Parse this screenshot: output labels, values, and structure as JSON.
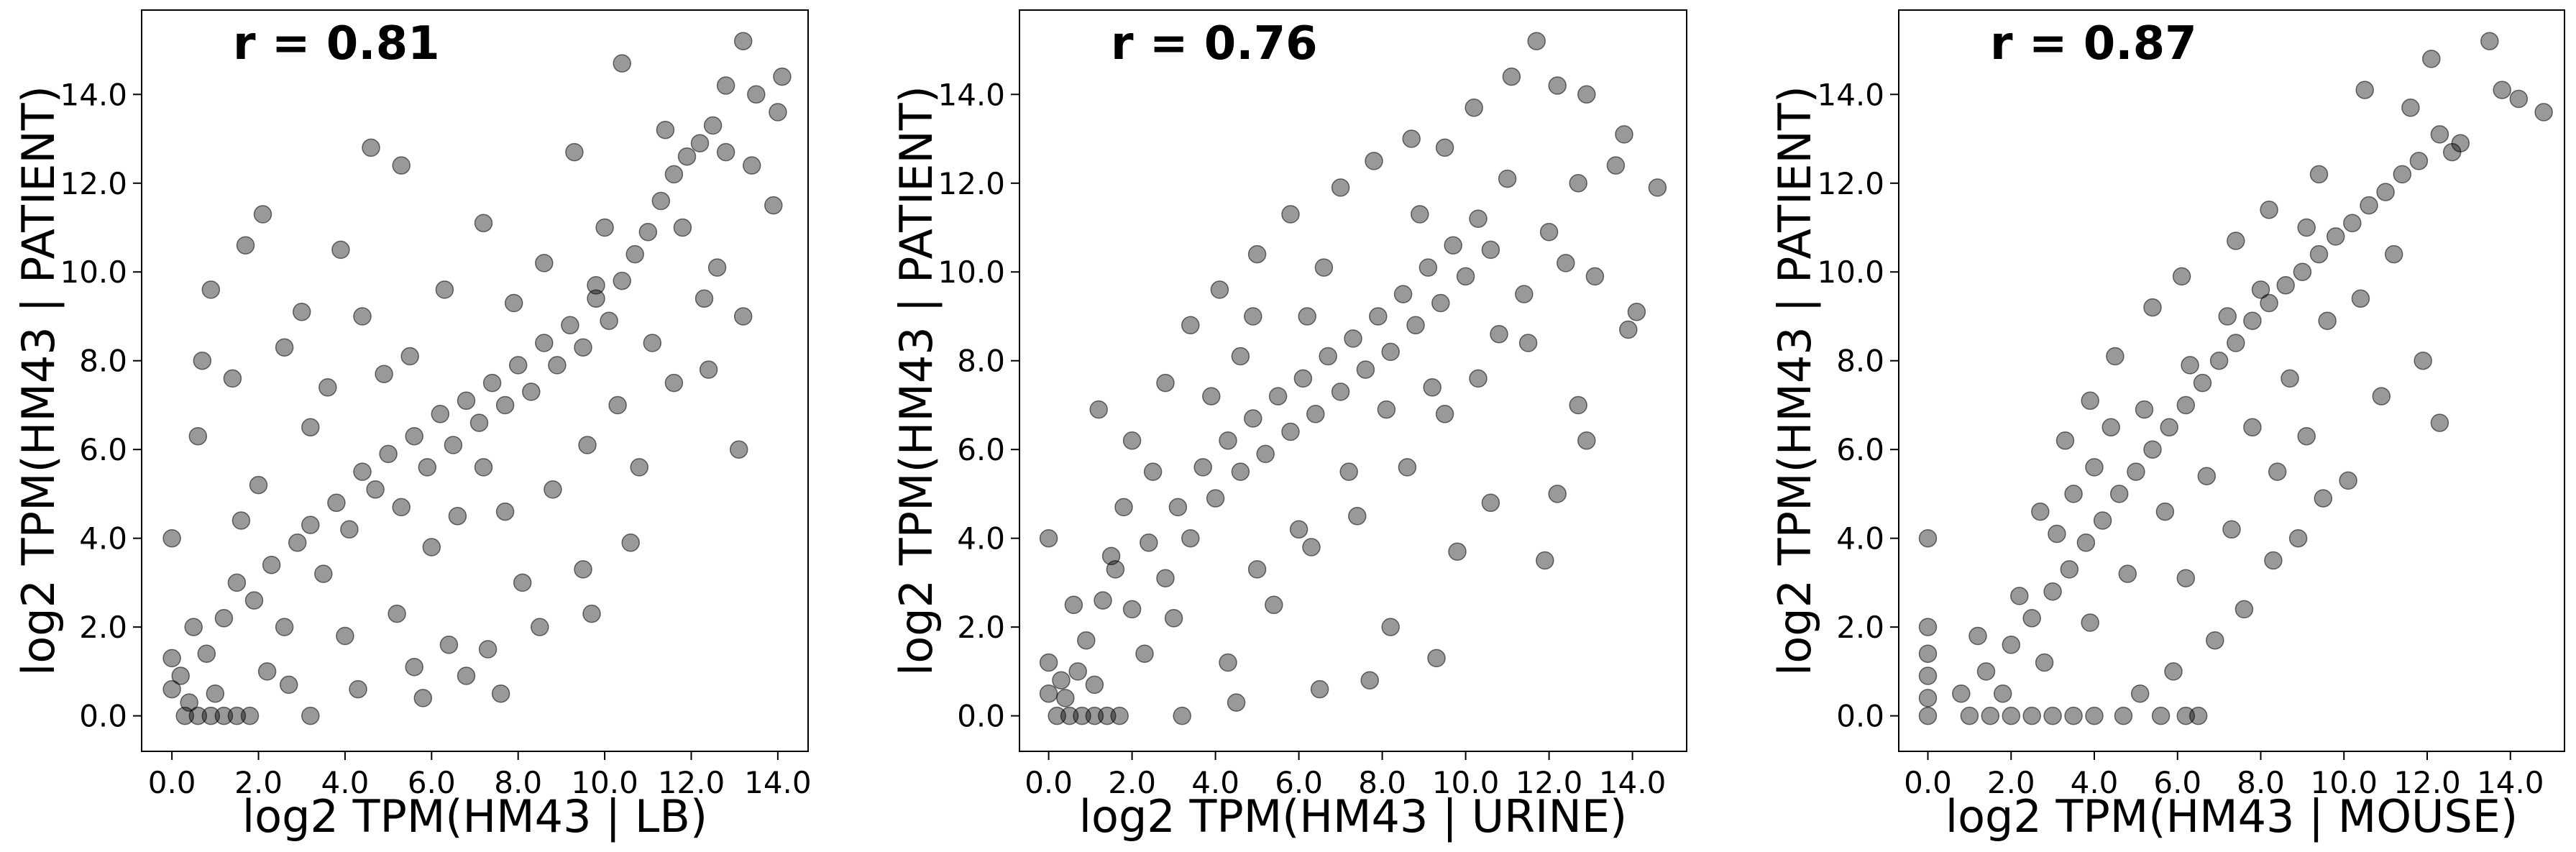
{
  "chart_data": [
    {
      "type": "scatter",
      "annotation": "r = 0.81",
      "xlabel": "log2 TPM(HM43 | LB)",
      "ylabel": "log2 TPM(HM43 | PATIENT)",
      "xlim": [
        -0.7,
        14.7
      ],
      "ylim": [
        -0.8,
        15.9
      ],
      "xticks": [
        "0.0",
        "2.0",
        "4.0",
        "6.0",
        "8.0",
        "10.0",
        "12.0",
        "14.0"
      ],
      "yticks": [
        "0.0",
        "2.0",
        "4.0",
        "6.0",
        "8.0",
        "10.0",
        "12.0",
        "14.0"
      ],
      "marker_color": "#000000",
      "marker_alpha": 0.4,
      "points": [
        [
          0.3,
          0.0
        ],
        [
          0.6,
          0.0
        ],
        [
          0.9,
          0.0
        ],
        [
          1.2,
          0.0
        ],
        [
          1.5,
          0.0
        ],
        [
          1.8,
          0.0
        ],
        [
          0.0,
          0.6
        ],
        [
          0.0,
          1.3
        ],
        [
          0.0,
          4.0
        ],
        [
          0.2,
          0.9
        ],
        [
          0.8,
          1.4
        ],
        [
          1.2,
          2.2
        ],
        [
          1.5,
          3.0
        ],
        [
          1.9,
          2.6
        ],
        [
          2.3,
          3.4
        ],
        [
          2.6,
          2.0
        ],
        [
          2.9,
          3.9
        ],
        [
          3.2,
          4.3
        ],
        [
          3.5,
          3.2
        ],
        [
          3.8,
          4.8
        ],
        [
          4.1,
          4.2
        ],
        [
          4.4,
          5.5
        ],
        [
          4.7,
          5.1
        ],
        [
          5.0,
          5.9
        ],
        [
          5.3,
          4.7
        ],
        [
          5.6,
          6.3
        ],
        [
          5.9,
          5.6
        ],
        [
          6.2,
          6.8
        ],
        [
          6.5,
          6.1
        ],
        [
          6.8,
          7.1
        ],
        [
          7.1,
          6.6
        ],
        [
          7.4,
          7.5
        ],
        [
          7.7,
          7.0
        ],
        [
          8.0,
          7.9
        ],
        [
          8.3,
          7.3
        ],
        [
          8.6,
          8.4
        ],
        [
          8.9,
          7.9
        ],
        [
          9.2,
          8.8
        ],
        [
          9.5,
          8.3
        ],
        [
          9.8,
          9.4
        ],
        [
          10.1,
          8.9
        ],
        [
          10.4,
          9.8
        ],
        [
          10.7,
          10.4
        ],
        [
          11.0,
          10.9
        ],
        [
          11.3,
          11.6
        ],
        [
          11.6,
          12.2
        ],
        [
          11.9,
          12.6
        ],
        [
          12.2,
          12.9
        ],
        [
          12.5,
          13.3
        ],
        [
          12.8,
          12.7
        ],
        [
          13.2,
          15.2
        ],
        [
          14.1,
          14.4
        ],
        [
          12.8,
          14.2
        ],
        [
          13.5,
          14.0
        ],
        [
          14.0,
          13.6
        ],
        [
          13.9,
          11.5
        ],
        [
          13.4,
          12.4
        ],
        [
          11.4,
          13.2
        ],
        [
          0.6,
          6.3
        ],
        [
          0.9,
          9.6
        ],
        [
          1.7,
          10.6
        ],
        [
          2.1,
          11.3
        ],
        [
          3.9,
          10.5
        ],
        [
          4.6,
          12.8
        ],
        [
          5.3,
          12.4
        ],
        [
          7.2,
          11.1
        ],
        [
          9.3,
          12.7
        ],
        [
          10.0,
          11.0
        ],
        [
          10.4,
          14.7
        ],
        [
          12.3,
          9.4
        ],
        [
          13.2,
          9.0
        ],
        [
          13.1,
          6.0
        ],
        [
          12.4,
          7.8
        ],
        [
          11.6,
          7.5
        ],
        [
          10.8,
          5.6
        ],
        [
          9.5,
          3.3
        ],
        [
          9.7,
          2.3
        ],
        [
          8.1,
          3.0
        ],
        [
          7.3,
          1.5
        ],
        [
          6.4,
          1.6
        ],
        [
          5.6,
          1.1
        ],
        [
          4.3,
          0.6
        ],
        [
          3.2,
          0.0
        ],
        [
          2.7,
          0.7
        ],
        [
          6.8,
          0.9
        ],
        [
          7.6,
          0.5
        ],
        [
          5.2,
          2.3
        ],
        [
          6.0,
          3.8
        ],
        [
          7.7,
          4.6
        ],
        [
          8.8,
          5.1
        ],
        [
          9.6,
          6.1
        ],
        [
          10.3,
          7.0
        ],
        [
          11.1,
          8.4
        ],
        [
          3.2,
          6.5
        ],
        [
          2.6,
          8.3
        ],
        [
          3.0,
          9.1
        ],
        [
          4.4,
          9.0
        ],
        [
          5.5,
          8.1
        ],
        [
          1.4,
          7.6
        ],
        [
          0.7,
          8.0
        ],
        [
          2.0,
          5.2
        ],
        [
          1.6,
          4.4
        ],
        [
          3.6,
          7.4
        ],
        [
          4.9,
          7.7
        ],
        [
          6.3,
          9.6
        ],
        [
          7.9,
          9.3
        ],
        [
          8.6,
          10.2
        ],
        [
          9.8,
          9.7
        ],
        [
          11.8,
          11.0
        ],
        [
          12.6,
          10.1
        ],
        [
          10.6,
          3.9
        ],
        [
          8.5,
          2.0
        ],
        [
          5.8,
          0.4
        ],
        [
          4.0,
          1.8
        ],
        [
          6.6,
          4.5
        ],
        [
          7.2,
          5.6
        ],
        [
          2.2,
          1.0
        ],
        [
          1.0,
          0.5
        ],
        [
          0.4,
          0.3
        ],
        [
          0.5,
          2.0
        ]
      ]
    },
    {
      "type": "scatter",
      "annotation": "r = 0.76",
      "xlabel": "log2 TPM(HM43 | URINE)",
      "ylabel": "log2 TPM(HM43 | PATIENT)",
      "xlim": [
        -0.7,
        15.3
      ],
      "ylim": [
        -0.8,
        15.9
      ],
      "xticks": [
        "0.0",
        "2.0",
        "4.0",
        "6.0",
        "8.0",
        "10.0",
        "12.0",
        "14.0"
      ],
      "yticks": [
        "0.0",
        "2.0",
        "4.0",
        "6.0",
        "8.0",
        "10.0",
        "12.0",
        "14.0"
      ],
      "marker_color": "#000000",
      "marker_alpha": 0.4,
      "points": [
        [
          0.2,
          0.0
        ],
        [
          0.5,
          0.0
        ],
        [
          0.8,
          0.0
        ],
        [
          1.1,
          0.0
        ],
        [
          1.4,
          0.0
        ],
        [
          1.7,
          0.0
        ],
        [
          0.0,
          0.5
        ],
        [
          0.0,
          1.2
        ],
        [
          0.0,
          4.0
        ],
        [
          0.3,
          0.8
        ],
        [
          0.9,
          1.7
        ],
        [
          1.3,
          2.6
        ],
        [
          1.6,
          3.3
        ],
        [
          2.0,
          2.4
        ],
        [
          2.4,
          3.9
        ],
        [
          2.8,
          3.1
        ],
        [
          3.1,
          4.7
        ],
        [
          3.4,
          4.0
        ],
        [
          3.7,
          5.6
        ],
        [
          4.0,
          4.9
        ],
        [
          4.3,
          6.2
        ],
        [
          4.6,
          5.5
        ],
        [
          4.9,
          6.7
        ],
        [
          5.2,
          5.9
        ],
        [
          5.5,
          7.2
        ],
        [
          5.8,
          6.4
        ],
        [
          6.1,
          7.6
        ],
        [
          6.4,
          6.8
        ],
        [
          6.7,
          8.1
        ],
        [
          7.0,
          7.3
        ],
        [
          7.3,
          8.5
        ],
        [
          7.6,
          7.8
        ],
        [
          7.9,
          9.0
        ],
        [
          8.2,
          8.2
        ],
        [
          8.5,
          9.5
        ],
        [
          8.8,
          8.8
        ],
        [
          9.1,
          10.1
        ],
        [
          9.4,
          9.3
        ],
        [
          9.7,
          10.6
        ],
        [
          10.0,
          9.9
        ],
        [
          10.3,
          11.2
        ],
        [
          10.6,
          10.5
        ],
        [
          11.0,
          12.1
        ],
        [
          11.7,
          15.2
        ],
        [
          12.2,
          14.2
        ],
        [
          11.1,
          14.4
        ],
        [
          12.9,
          14.0
        ],
        [
          13.8,
          13.1
        ],
        [
          14.6,
          11.9
        ],
        [
          13.6,
          12.4
        ],
        [
          12.7,
          12.0
        ],
        [
          12.4,
          10.2
        ],
        [
          13.1,
          9.9
        ],
        [
          14.1,
          9.1
        ],
        [
          13.9,
          8.7
        ],
        [
          12.7,
          7.0
        ],
        [
          12.9,
          6.2
        ],
        [
          12.2,
          5.0
        ],
        [
          11.9,
          3.5
        ],
        [
          10.6,
          4.8
        ],
        [
          9.8,
          3.7
        ],
        [
          9.3,
          1.3
        ],
        [
          8.2,
          2.0
        ],
        [
          7.7,
          0.8
        ],
        [
          6.5,
          0.6
        ],
        [
          4.5,
          0.3
        ],
        [
          3.2,
          0.0
        ],
        [
          4.3,
          1.2
        ],
        [
          5.4,
          2.5
        ],
        [
          6.3,
          3.8
        ],
        [
          7.4,
          4.5
        ],
        [
          8.6,
          5.6
        ],
        [
          9.5,
          6.8
        ],
        [
          10.3,
          7.6
        ],
        [
          11.5,
          8.4
        ],
        [
          1.2,
          6.9
        ],
        [
          2.0,
          6.2
        ],
        [
          2.8,
          7.5
        ],
        [
          3.4,
          8.8
        ],
        [
          4.1,
          9.6
        ],
        [
          5.0,
          10.4
        ],
        [
          5.8,
          11.3
        ],
        [
          7.0,
          11.9
        ],
        [
          7.8,
          12.5
        ],
        [
          8.7,
          13.0
        ],
        [
          9.5,
          12.8
        ],
        [
          10.2,
          13.7
        ],
        [
          6.6,
          10.1
        ],
        [
          4.9,
          9.0
        ],
        [
          3.9,
          7.2
        ],
        [
          1.8,
          4.7
        ],
        [
          0.6,
          2.5
        ],
        [
          1.1,
          0.7
        ],
        [
          2.3,
          1.4
        ],
        [
          3.0,
          2.2
        ],
        [
          5.0,
          3.3
        ],
        [
          6.0,
          4.2
        ],
        [
          7.2,
          5.5
        ],
        [
          8.1,
          6.9
        ],
        [
          9.2,
          7.4
        ],
        [
          10.8,
          8.6
        ],
        [
          11.4,
          9.5
        ],
        [
          12.0,
          10.9
        ],
        [
          8.9,
          11.3
        ],
        [
          6.2,
          9.0
        ],
        [
          4.6,
          8.1
        ],
        [
          2.5,
          5.5
        ],
        [
          1.5,
          3.6
        ],
        [
          0.4,
          0.4
        ],
        [
          0.7,
          1.0
        ]
      ]
    },
    {
      "type": "scatter",
      "annotation": "r = 0.87",
      "xlabel": "log2 TPM(HM43 | MOUSE)",
      "ylabel": "log2 TPM(HM43 | PATIENT)",
      "xlim": [
        -0.7,
        15.3
      ],
      "ylim": [
        -0.8,
        15.9
      ],
      "xticks": [
        "0.0",
        "2.0",
        "4.0",
        "6.0",
        "8.0",
        "10.0",
        "12.0",
        "14.0"
      ],
      "yticks": [
        "0.0",
        "2.0",
        "4.0",
        "6.0",
        "8.0",
        "10.0",
        "12.0",
        "14.0"
      ],
      "marker_color": "#000000",
      "marker_alpha": 0.4,
      "points": [
        [
          0.0,
          0.0
        ],
        [
          0.0,
          0.4
        ],
        [
          0.0,
          0.9
        ],
        [
          0.0,
          1.4
        ],
        [
          0.0,
          2.0
        ],
        [
          0.0,
          4.0
        ],
        [
          1.0,
          0.0
        ],
        [
          1.5,
          0.0
        ],
        [
          2.0,
          0.0
        ],
        [
          2.5,
          0.0
        ],
        [
          3.0,
          0.0
        ],
        [
          3.5,
          0.0
        ],
        [
          4.0,
          0.0
        ],
        [
          4.7,
          0.0
        ],
        [
          5.6,
          0.0
        ],
        [
          6.2,
          0.0
        ],
        [
          6.5,
          0.0
        ],
        [
          0.8,
          0.5
        ],
        [
          1.4,
          1.0
        ],
        [
          2.0,
          1.6
        ],
        [
          2.5,
          2.2
        ],
        [
          3.0,
          2.8
        ],
        [
          3.4,
          3.3
        ],
        [
          3.8,
          3.9
        ],
        [
          4.2,
          4.4
        ],
        [
          4.6,
          5.0
        ],
        [
          5.0,
          5.5
        ],
        [
          5.4,
          6.0
        ],
        [
          5.8,
          6.5
        ],
        [
          6.2,
          7.0
        ],
        [
          6.6,
          7.5
        ],
        [
          7.0,
          8.0
        ],
        [
          7.4,
          8.4
        ],
        [
          7.8,
          8.9
        ],
        [
          8.2,
          9.3
        ],
        [
          8.6,
          9.7
        ],
        [
          9.0,
          10.0
        ],
        [
          9.4,
          10.4
        ],
        [
          9.8,
          10.8
        ],
        [
          10.2,
          11.1
        ],
        [
          10.6,
          11.5
        ],
        [
          11.0,
          11.8
        ],
        [
          11.4,
          12.2
        ],
        [
          11.8,
          12.5
        ],
        [
          12.3,
          13.1
        ],
        [
          12.6,
          12.7
        ],
        [
          12.8,
          12.9
        ],
        [
          12.1,
          14.8
        ],
        [
          13.5,
          15.2
        ],
        [
          14.2,
          13.9
        ],
        [
          14.8,
          13.6
        ],
        [
          13.8,
          14.1
        ],
        [
          11.6,
          13.7
        ],
        [
          10.5,
          14.1
        ],
        [
          11.2,
          10.4
        ],
        [
          11.9,
          8.0
        ],
        [
          12.3,
          6.6
        ],
        [
          10.9,
          7.2
        ],
        [
          10.1,
          5.3
        ],
        [
          9.5,
          4.9
        ],
        [
          8.9,
          4.0
        ],
        [
          8.3,
          3.5
        ],
        [
          7.6,
          2.4
        ],
        [
          6.9,
          1.7
        ],
        [
          5.9,
          1.0
        ],
        [
          5.1,
          0.5
        ],
        [
          2.7,
          4.6
        ],
        [
          3.3,
          6.2
        ],
        [
          3.9,
          7.1
        ],
        [
          4.5,
          8.1
        ],
        [
          5.4,
          9.2
        ],
        [
          6.1,
          9.9
        ],
        [
          7.4,
          10.7
        ],
        [
          8.2,
          11.4
        ],
        [
          9.4,
          12.2
        ],
        [
          3.1,
          4.1
        ],
        [
          4.0,
          5.6
        ],
        [
          5.2,
          6.9
        ],
        [
          6.3,
          7.9
        ],
        [
          7.2,
          9.0
        ],
        [
          8.0,
          9.6
        ],
        [
          9.1,
          11.0
        ],
        [
          6.7,
          5.4
        ],
        [
          7.8,
          6.5
        ],
        [
          8.7,
          7.6
        ],
        [
          9.6,
          8.9
        ],
        [
          10.4,
          9.4
        ],
        [
          5.7,
          4.6
        ],
        [
          4.8,
          3.2
        ],
        [
          3.9,
          2.1
        ],
        [
          2.8,
          1.2
        ],
        [
          1.8,
          0.5
        ],
        [
          6.2,
          3.1
        ],
        [
          7.3,
          4.2
        ],
        [
          8.4,
          5.5
        ],
        [
          9.1,
          6.3
        ],
        [
          4.4,
          6.5
        ],
        [
          3.5,
          5.0
        ],
        [
          2.2,
          2.7
        ],
        [
          1.2,
          1.8
        ]
      ]
    }
  ]
}
